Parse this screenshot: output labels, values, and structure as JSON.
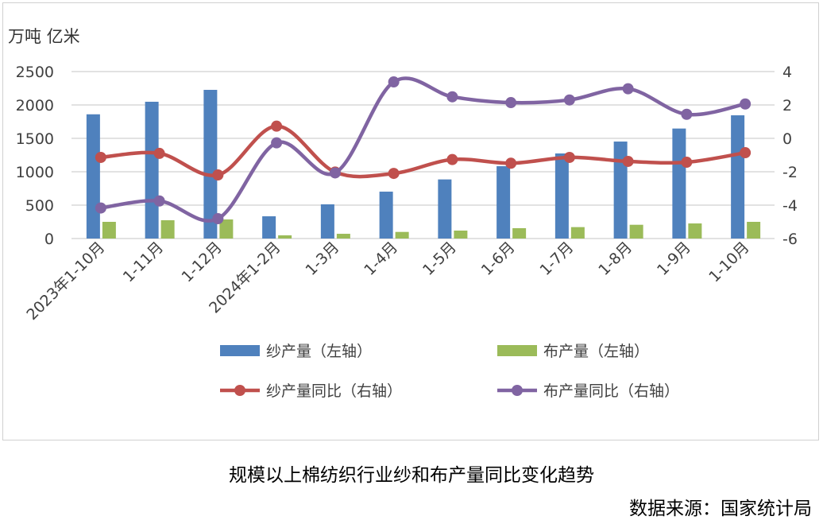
{
  "chart_data": {
    "type": "bar+line",
    "title": "规模以上棉纺织行业纱和布产量同比变化趋势",
    "source": "数据来源：国家统计局",
    "y_unit_label": "万吨 亿米",
    "categories": [
      "2023年1-10月",
      "1-11月",
      "1-12月",
      "2024年1-2月",
      "1-3月",
      "1-4月",
      "1-5月",
      "1-6月",
      "1-7月",
      "1-8月",
      "1-9月",
      "1-10月"
    ],
    "left_axis": {
      "range": [
        0,
        2500
      ],
      "ticks": [
        0,
        500,
        1000,
        1500,
        2000,
        2500
      ]
    },
    "right_axis": {
      "range": [
        -6,
        4
      ],
      "ticks": [
        -6,
        -4,
        -2,
        0,
        2,
        4
      ]
    },
    "grid": true,
    "legend_position": "bottom",
    "series": [
      {
        "name": "纱产量（左轴）",
        "type": "bar",
        "axis": "left",
        "color": "#4F81BD",
        "values": [
          1860,
          2048,
          2226,
          333,
          512,
          702,
          885,
          1083,
          1274,
          1452,
          1647,
          1845
        ]
      },
      {
        "name": "布产量（左轴）",
        "type": "bar",
        "axis": "left",
        "color": "#9BBB59",
        "values": [
          250,
          274,
          286,
          48,
          71,
          99,
          119,
          155,
          171,
          206,
          226,
          250
        ]
      },
      {
        "name": "纱产量同比（右轴）",
        "type": "line",
        "axis": "right",
        "color": "#C0504D",
        "values": [
          -1.14,
          -0.9,
          -2.19,
          0.73,
          -2.02,
          -2.1,
          -1.27,
          -1.49,
          -1.14,
          -1.38,
          -1.43,
          -0.86
        ]
      },
      {
        "name": "布产量同比（右轴）",
        "type": "line",
        "axis": "right",
        "color": "#8064A2",
        "values": [
          -4.17,
          -3.75,
          -4.81,
          -0.27,
          -2.07,
          3.38,
          2.49,
          2.14,
          2.3,
          2.97,
          1.44,
          2.06
        ]
      }
    ]
  }
}
